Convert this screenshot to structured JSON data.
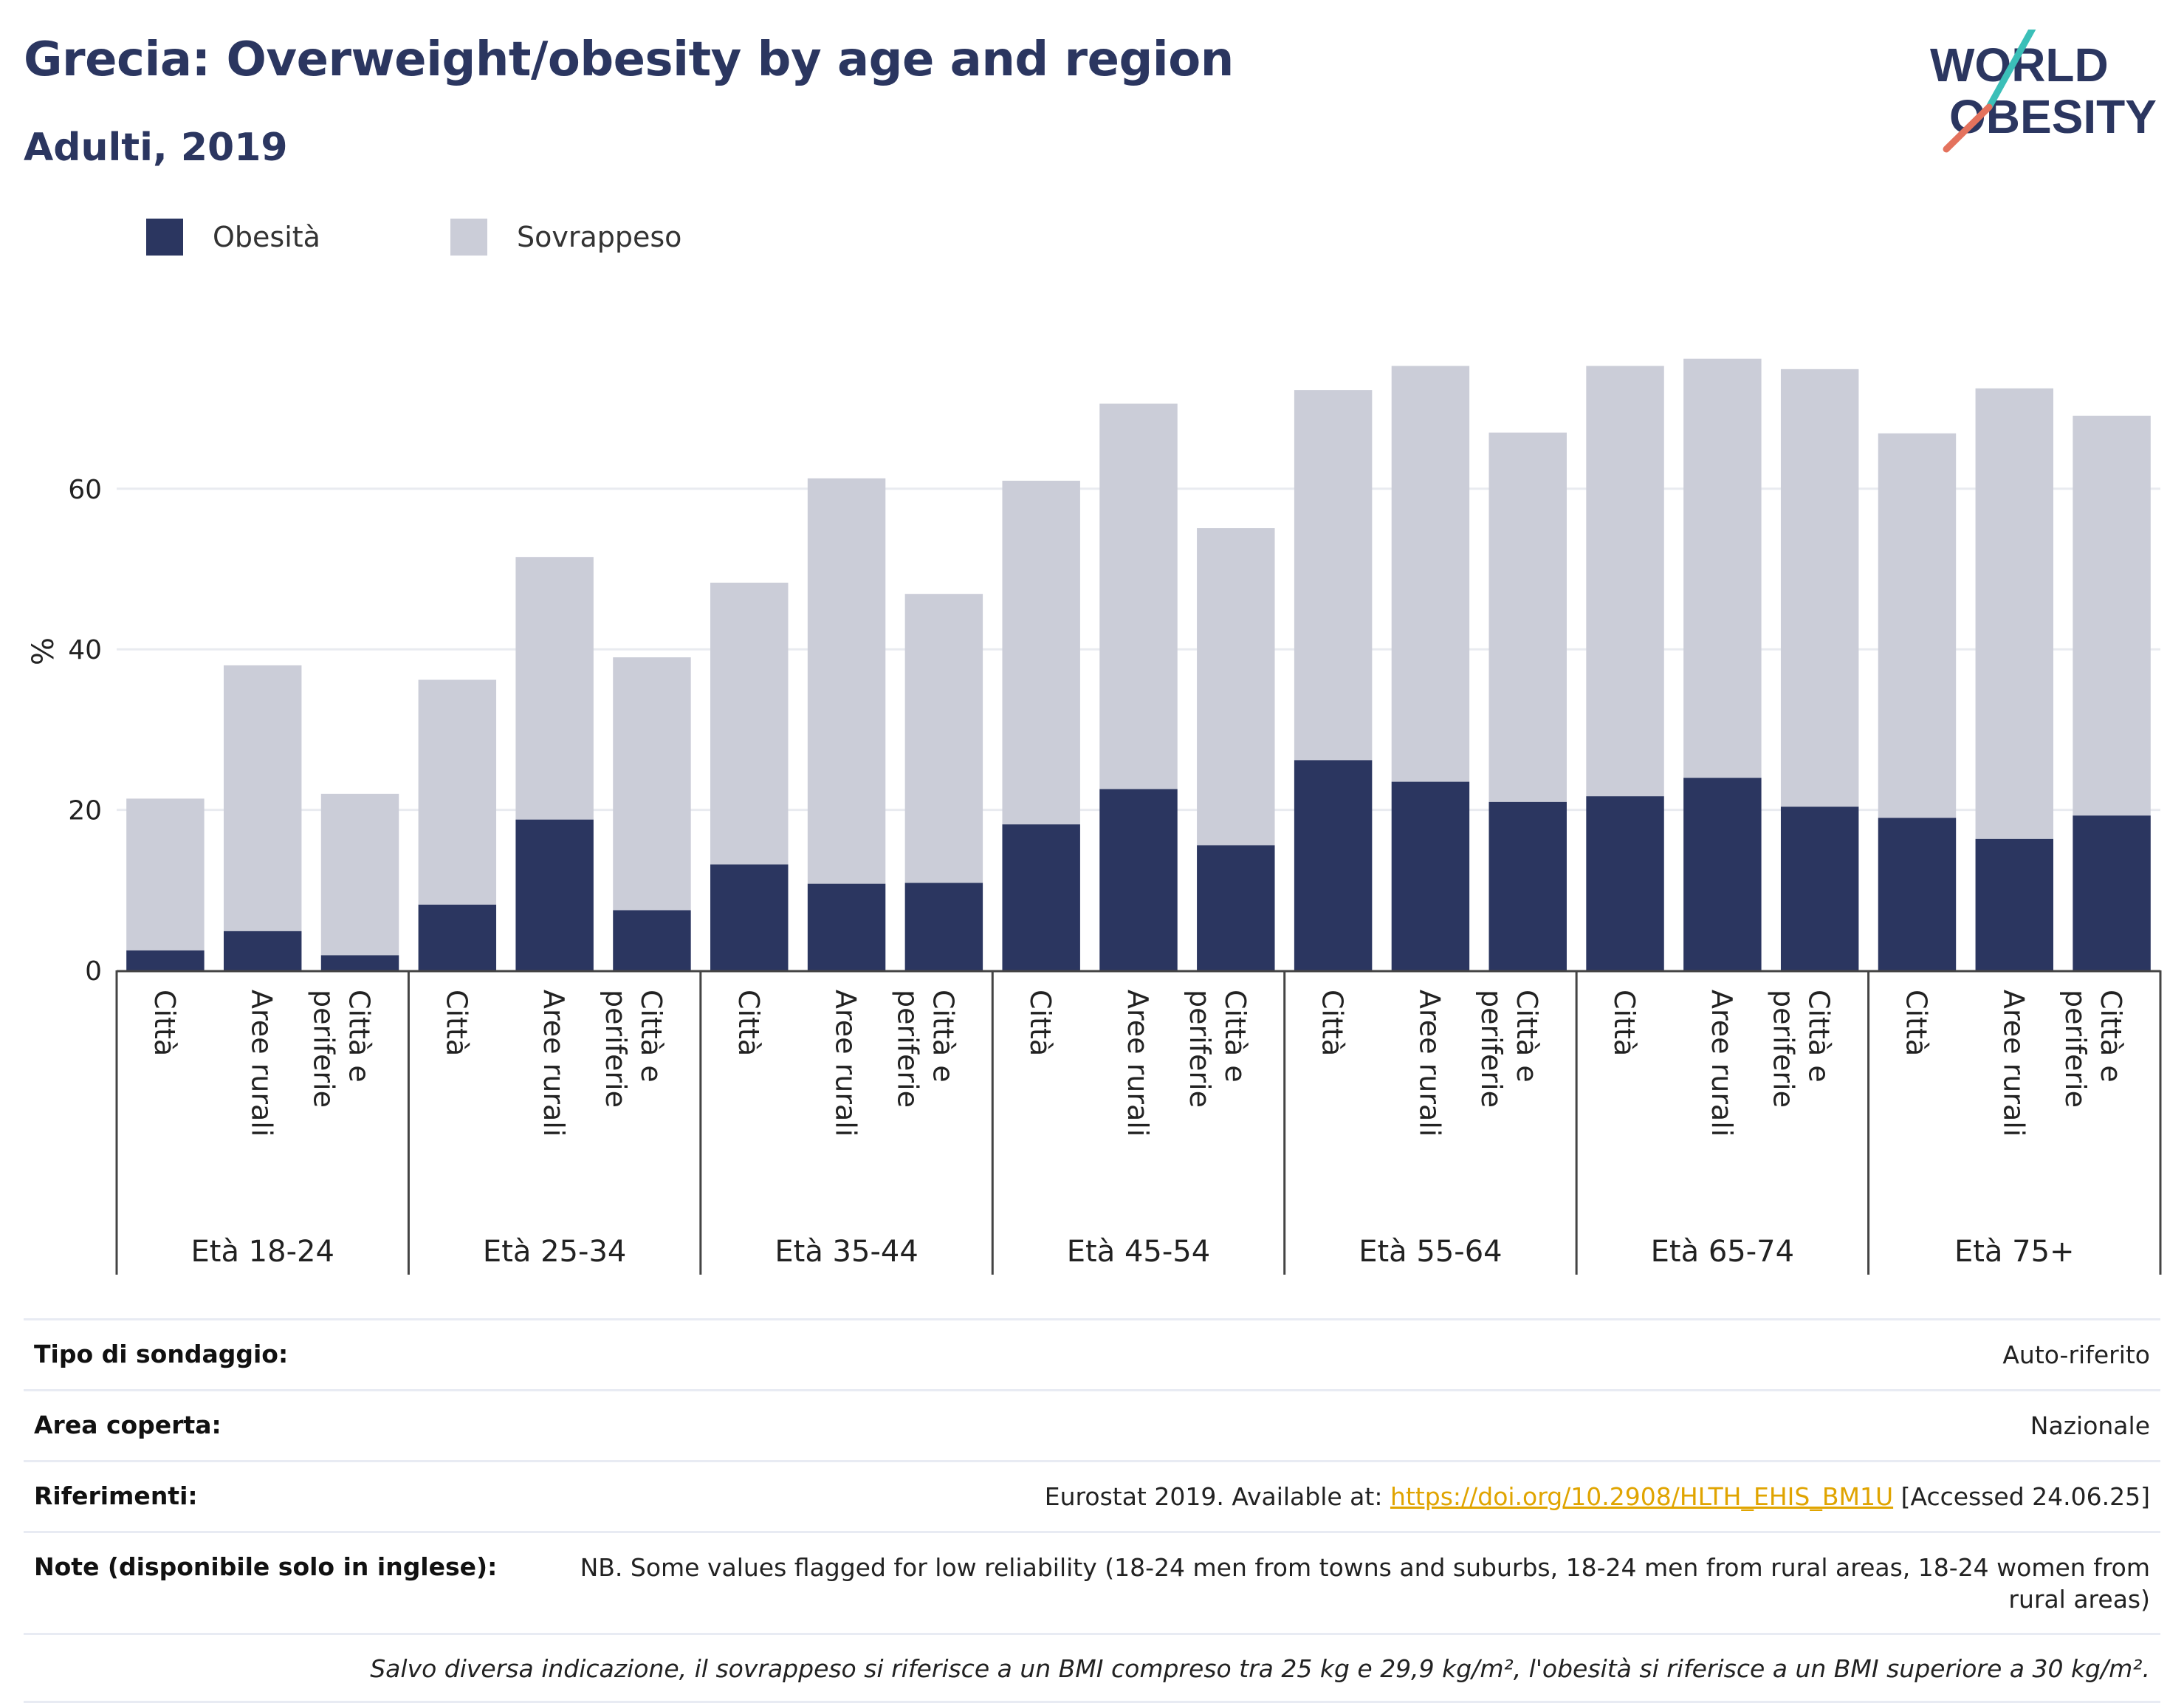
{
  "header": {
    "title": "Grecia: Overweight/obesity by age and region",
    "subtitle": "Adulti, 2019"
  },
  "logo": {
    "line1": "WORLD",
    "line2": "OBESITY"
  },
  "colors": {
    "obesity": "#2b3660",
    "overweight": "#cbcdd8",
    "link": "#e0a400",
    "grid": "#e9ebf0"
  },
  "legend": [
    {
      "label": "Obesità",
      "color": "#2b3660"
    },
    {
      "label": "Sovrappeso",
      "color": "#cbcdd8"
    }
  ],
  "chart_data": {
    "type": "bar",
    "stacked": true,
    "ylabel": "%",
    "ylim": [
      0,
      80
    ],
    "yticks": [
      0,
      20,
      40,
      60
    ],
    "grid": true,
    "legend_position": "top-left",
    "groups": [
      {
        "label": "Età 18-24",
        "categories": [
          "Città",
          "Aree rurali",
          "Città e periferie"
        ]
      },
      {
        "label": "Età 25-34",
        "categories": [
          "Città",
          "Aree rurali",
          "Città e periferie"
        ]
      },
      {
        "label": "Età 35-44",
        "categories": [
          "Città",
          "Aree rurali",
          "Città e periferie"
        ]
      },
      {
        "label": "Età 45-54",
        "categories": [
          "Città",
          "Aree rurali",
          "Città e periferie"
        ]
      },
      {
        "label": "Età 55-64",
        "categories": [
          "Città",
          "Aree rurali",
          "Città e periferie"
        ]
      },
      {
        "label": "Età 65-74",
        "categories": [
          "Città",
          "Aree rurali",
          "Città e periferie"
        ]
      },
      {
        "label": "Età 75+",
        "categories": [
          "Città",
          "Aree rurali",
          "Città e periferie"
        ]
      }
    ],
    "series": [
      {
        "name": "Obesità",
        "values": [
          2.5,
          4.9,
          1.9,
          8.2,
          18.8,
          7.5,
          13.2,
          10.8,
          10.9,
          18.2,
          22.6,
          15.6,
          26.2,
          23.5,
          21.0,
          21.7,
          24.0,
          20.4,
          19.0,
          16.4,
          19.3
        ]
      },
      {
        "name": "Sovrappeso",
        "values": [
          18.9,
          33.1,
          20.1,
          28.0,
          32.7,
          31.5,
          35.1,
          50.5,
          36.0,
          42.8,
          48.0,
          39.5,
          46.1,
          51.8,
          46.0,
          53.6,
          52.2,
          54.5,
          47.9,
          56.1,
          49.8
        ]
      }
    ]
  },
  "info": [
    {
      "key": "Tipo di sondaggio:",
      "value": "Auto-riferito"
    },
    {
      "key": "Area coperta:",
      "value": "Nazionale"
    },
    {
      "key": "Riferimenti:",
      "value_pre": "Eurostat 2019. Available at: ",
      "link": "https://doi.org/10.2908/HLTH_EHIS_BM1U",
      "value_post": " [Accessed 24.06.25]"
    },
    {
      "key": "Note (disponibile solo in inglese):",
      "value": "NB. Some values flagged for low reliability (18-24 men from towns and suburbs, 18-24 men from rural areas, 18-24 women from rural areas)"
    }
  ],
  "footnote": "Salvo diversa indicazione, il sovrappeso si riferisce a un BMI compreso tra 25 kg e 29,9 kg/m², l'obesità si riferisce a un BMI superiore a 30 kg/m²."
}
